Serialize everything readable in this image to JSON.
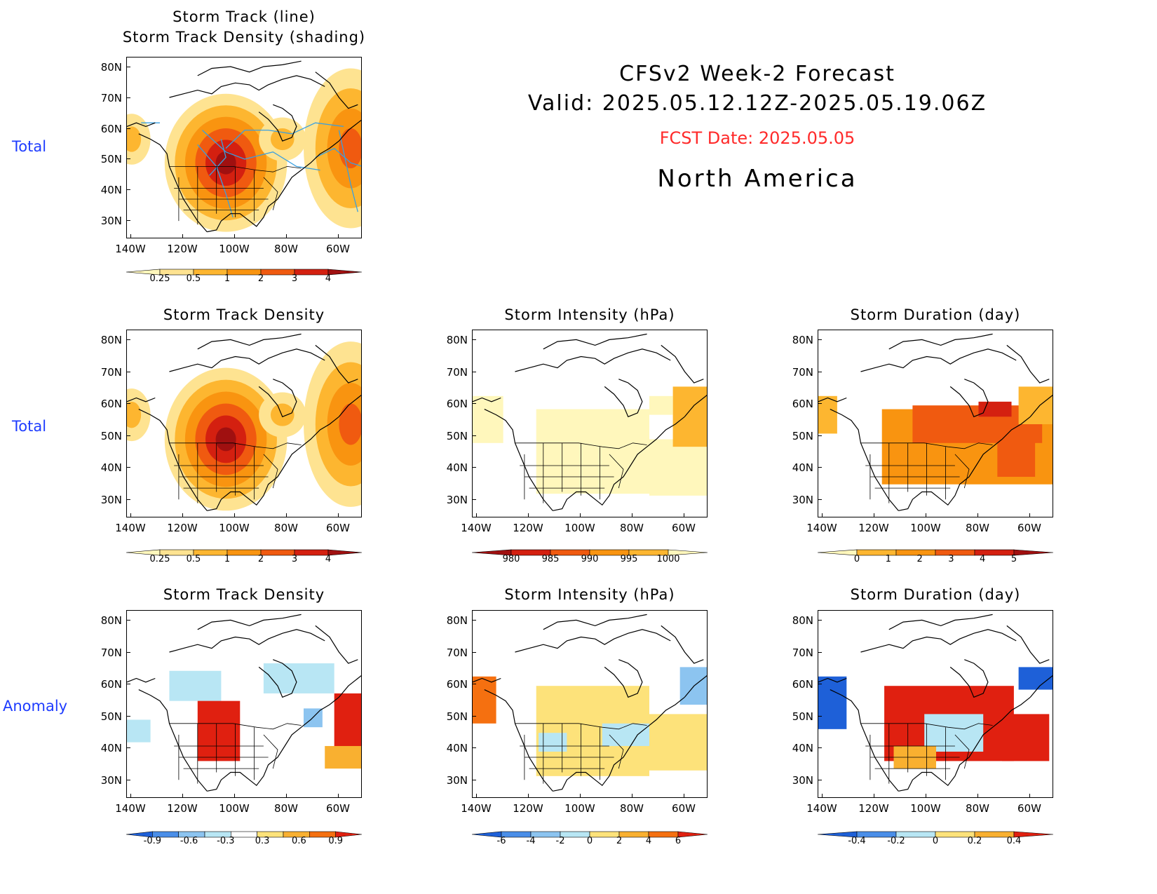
{
  "header": {
    "line1": "CFSv2 Week-2 Forecast",
    "line2": "Valid: 2025.05.12.12Z-2025.05.19.06Z",
    "fcst_date": "FCST Date: 2025.05.05",
    "region": "North America",
    "fcst_color": "#ff2a2a"
  },
  "row_labels": [
    "Total",
    "Total",
    "Anomaly"
  ],
  "lat_labels": [
    "80N",
    "70N",
    "60N",
    "50N",
    "40N",
    "30N"
  ],
  "lon_labels": [
    "140W",
    "120W",
    "100W",
    "80W",
    "60W"
  ],
  "panels": [
    {
      "id": "p1",
      "title_line1": "Storm Track (line)",
      "title_line2": "Storm Track Density (shading)",
      "colorbar": "density"
    },
    {
      "id": "p2",
      "title_line1": "Storm Track Density",
      "colorbar": "density"
    },
    {
      "id": "p3",
      "title_line1": "Storm Intensity (hPa)",
      "colorbar": "intensity"
    },
    {
      "id": "p4",
      "title_line1": "Storm Duration (day)",
      "colorbar": "duration"
    },
    {
      "id": "p5",
      "title_line1": "Storm Track Density",
      "colorbar": "density_anom"
    },
    {
      "id": "p6",
      "title_line1": "Storm Intensity (hPa)",
      "colorbar": "intensity_anom"
    },
    {
      "id": "p7",
      "title_line1": "Storm Duration (day)",
      "colorbar": "duration_anom"
    }
  ],
  "colorbars": {
    "density": {
      "labels": [
        "0.25",
        "0.5",
        "1",
        "2",
        "3",
        "4"
      ],
      "colors": [
        "#fff7bc",
        "#fee391",
        "#fdb630",
        "#f99410",
        "#f05a10",
        "#d42010",
        "#a01010"
      ]
    },
    "intensity": {
      "labels": [
        "980",
        "985",
        "990",
        "995",
        "1000"
      ],
      "colors": [
        "#a01010",
        "#d42010",
        "#f05a10",
        "#f99410",
        "#fdb630",
        "#fff7bc"
      ]
    },
    "duration": {
      "labels": [
        "0",
        "1",
        "2",
        "3",
        "4",
        "5"
      ],
      "colors": [
        "#fff7bc",
        "#fdb630",
        "#f99410",
        "#f05a10",
        "#d42010",
        "#a01010"
      ]
    },
    "density_anom": {
      "labels": [
        "-0.9",
        "-0.6",
        "-0.3",
        "0.3",
        "0.6",
        "0.9"
      ],
      "colors": [
        "#1e60d8",
        "#4a8ee8",
        "#8cc4f0",
        "#b8e6f4",
        "#ffffff",
        "#fde27a",
        "#f9b030",
        "#f57010",
        "#e02010"
      ]
    },
    "intensity_anom": {
      "labels": [
        "-6",
        "-4",
        "-2",
        "0",
        "2",
        "4",
        "6"
      ],
      "colors": [
        "#1e60d8",
        "#4a8ee8",
        "#8cc4f0",
        "#b8e6f4",
        "#fde27a",
        "#f9b030",
        "#f57010",
        "#e02010"
      ]
    },
    "duration_anom": {
      "labels": [
        "-0.4",
        "-0.2",
        "0",
        "0.2",
        "0.4"
      ],
      "colors": [
        "#1e60d8",
        "#4a8ee8",
        "#b8e6f4",
        "#fde27a",
        "#f9b030",
        "#e02010"
      ]
    }
  }
}
